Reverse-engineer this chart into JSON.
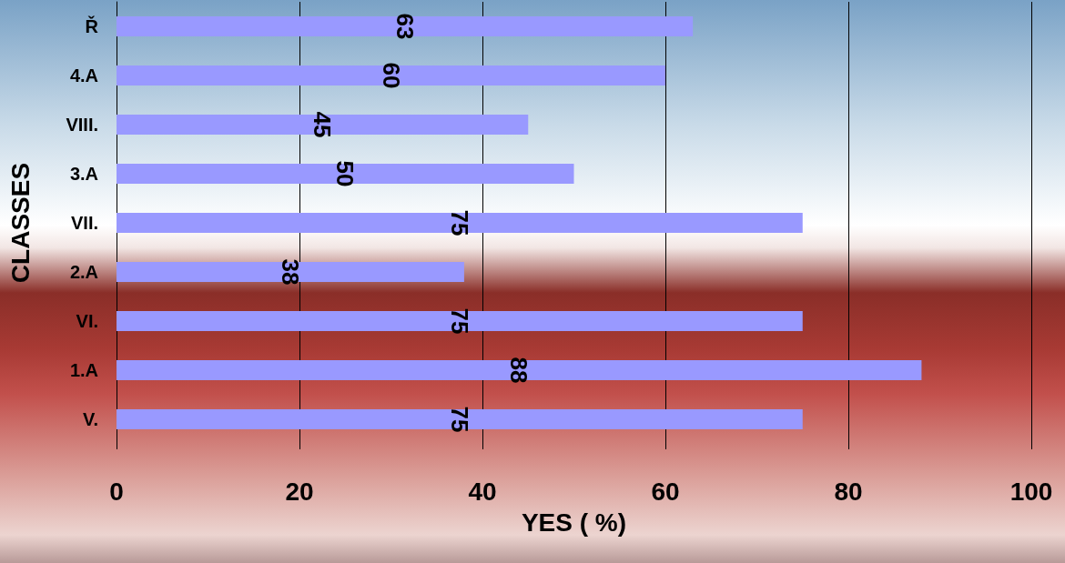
{
  "chart_data": {
    "type": "bar",
    "orientation": "horizontal",
    "xlabel": "YES ( %)",
    "ylabel": "CLASSES",
    "categories": [
      "Ř",
      "4.A",
      "VIII.",
      "3.A",
      "VII.",
      "2.A",
      "VI.",
      "1.A",
      "V."
    ],
    "values": [
      63,
      60,
      45,
      50,
      75,
      38,
      75,
      88,
      75
    ],
    "color": "#9999ff",
    "xlim": [
      0,
      100
    ],
    "xticks": [
      0,
      20,
      40,
      60,
      80,
      100
    ],
    "grid": "x",
    "data_labels": true
  }
}
